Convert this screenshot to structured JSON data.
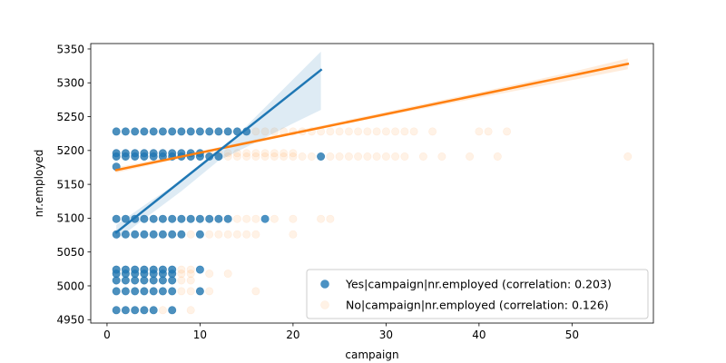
{
  "chart_data": {
    "type": "scatter",
    "xlabel": "campaign",
    "ylabel": "nr.employed",
    "xlim": [
      -1.75,
      58.75
    ],
    "ylim": [
      4945,
      5358
    ],
    "x_ticks": [
      0,
      10,
      20,
      30,
      40,
      50
    ],
    "y_ticks": [
      4950,
      5000,
      5050,
      5100,
      5150,
      5200,
      5250,
      5300,
      5350
    ],
    "legend_position": "lower-right",
    "grid": false,
    "colors": {
      "yes": "#1f77b4",
      "no": "#ff7f0e",
      "frame": "#000000"
    },
    "series": [
      {
        "key": "yes",
        "name": "Yes|campaign|nr.employed (correlation: 0.203)",
        "marker_alpha": 0.8,
        "points": [
          [
            1,
            5228
          ],
          [
            2,
            5228
          ],
          [
            3,
            5228
          ],
          [
            4,
            5228
          ],
          [
            5,
            5228
          ],
          [
            6,
            5228
          ],
          [
            7,
            5228
          ],
          [
            8,
            5228
          ],
          [
            9,
            5228
          ],
          [
            10,
            5228
          ],
          [
            11,
            5228
          ],
          [
            12,
            5228
          ],
          [
            13,
            5228
          ],
          [
            14,
            5228
          ],
          [
            15,
            5228
          ],
          [
            1,
            5196
          ],
          [
            2,
            5196
          ],
          [
            3,
            5196
          ],
          [
            4,
            5196
          ],
          [
            5,
            5196
          ],
          [
            6,
            5196
          ],
          [
            7,
            5196
          ],
          [
            8,
            5196
          ],
          [
            9,
            5196
          ],
          [
            10,
            5196
          ],
          [
            1,
            5191
          ],
          [
            2,
            5191
          ],
          [
            3,
            5191
          ],
          [
            4,
            5191
          ],
          [
            5,
            5191
          ],
          [
            6,
            5191
          ],
          [
            7,
            5191
          ],
          [
            8,
            5191
          ],
          [
            9,
            5191
          ],
          [
            10,
            5191
          ],
          [
            11,
            5191
          ],
          [
            12,
            5191
          ],
          [
            23,
            5191
          ],
          [
            1,
            5176
          ],
          [
            1,
            5099
          ],
          [
            2,
            5099
          ],
          [
            3,
            5099
          ],
          [
            4,
            5099
          ],
          [
            5,
            5099
          ],
          [
            6,
            5099
          ],
          [
            7,
            5099
          ],
          [
            8,
            5099
          ],
          [
            9,
            5099
          ],
          [
            10,
            5099
          ],
          [
            11,
            5099
          ],
          [
            12,
            5099
          ],
          [
            13,
            5099
          ],
          [
            17,
            5099
          ],
          [
            1,
            5076
          ],
          [
            2,
            5076
          ],
          [
            3,
            5076
          ],
          [
            4,
            5076
          ],
          [
            5,
            5076
          ],
          [
            6,
            5076
          ],
          [
            7,
            5076
          ],
          [
            8,
            5076
          ],
          [
            10,
            5076
          ],
          [
            1,
            5024
          ],
          [
            2,
            5024
          ],
          [
            3,
            5024
          ],
          [
            4,
            5024
          ],
          [
            5,
            5024
          ],
          [
            6,
            5024
          ],
          [
            7,
            5024
          ],
          [
            10,
            5024
          ],
          [
            1,
            5018
          ],
          [
            2,
            5018
          ],
          [
            3,
            5018
          ],
          [
            4,
            5018
          ],
          [
            5,
            5018
          ],
          [
            6,
            5018
          ],
          [
            7,
            5018
          ],
          [
            1,
            5008
          ],
          [
            2,
            5008
          ],
          [
            3,
            5008
          ],
          [
            4,
            5008
          ],
          [
            5,
            5008
          ],
          [
            6,
            5008
          ],
          [
            7,
            5008
          ],
          [
            1,
            4992
          ],
          [
            2,
            4992
          ],
          [
            3,
            4992
          ],
          [
            4,
            4992
          ],
          [
            5,
            4992
          ],
          [
            6,
            4992
          ],
          [
            7,
            4992
          ],
          [
            10,
            4992
          ],
          [
            1,
            4964
          ],
          [
            2,
            4964
          ],
          [
            3,
            4964
          ],
          [
            4,
            4964
          ],
          [
            5,
            4964
          ],
          [
            7,
            4964
          ]
        ],
        "fit": {
          "x": [
            1,
            23
          ],
          "y": [
            5079,
            5319
          ]
        },
        "ci": {
          "x": [
            1,
            4,
            8,
            12,
            16,
            20,
            23
          ],
          "upper": [
            5090,
            5119,
            5156,
            5195,
            5250,
            5305,
            5346
          ],
          "lower": [
            5068,
            5099,
            5140,
            5185,
            5212,
            5240,
            5260
          ]
        }
      },
      {
        "key": "no",
        "name": "No|campaign|nr.employed (correlation: 0.126)",
        "marker_alpha": 0.1,
        "points": [
          [
            1,
            5228
          ],
          [
            2,
            5228
          ],
          [
            3,
            5228
          ],
          [
            4,
            5228
          ],
          [
            5,
            5228
          ],
          [
            6,
            5228
          ],
          [
            7,
            5228
          ],
          [
            8,
            5228
          ],
          [
            9,
            5228
          ],
          [
            10,
            5228
          ],
          [
            11,
            5228
          ],
          [
            12,
            5228
          ],
          [
            13,
            5228
          ],
          [
            14,
            5228
          ],
          [
            15,
            5228
          ],
          [
            16,
            5228
          ],
          [
            17,
            5228
          ],
          [
            18,
            5228
          ],
          [
            19,
            5228
          ],
          [
            20,
            5228
          ],
          [
            21,
            5228
          ],
          [
            22,
            5228
          ],
          [
            23,
            5228
          ],
          [
            24,
            5228
          ],
          [
            25,
            5228
          ],
          [
            26,
            5228
          ],
          [
            27,
            5228
          ],
          [
            28,
            5228
          ],
          [
            29,
            5228
          ],
          [
            30,
            5228
          ],
          [
            31,
            5228
          ],
          [
            32,
            5228
          ],
          [
            33,
            5228
          ],
          [
            35,
            5228
          ],
          [
            40,
            5228
          ],
          [
            41,
            5228
          ],
          [
            43,
            5228
          ],
          [
            1,
            5196
          ],
          [
            2,
            5196
          ],
          [
            3,
            5196
          ],
          [
            4,
            5196
          ],
          [
            5,
            5196
          ],
          [
            6,
            5196
          ],
          [
            7,
            5196
          ],
          [
            8,
            5196
          ],
          [
            9,
            5196
          ],
          [
            10,
            5196
          ],
          [
            11,
            5196
          ],
          [
            12,
            5196
          ],
          [
            13,
            5196
          ],
          [
            14,
            5196
          ],
          [
            15,
            5196
          ],
          [
            16,
            5196
          ],
          [
            17,
            5196
          ],
          [
            18,
            5196
          ],
          [
            19,
            5196
          ],
          [
            20,
            5196
          ],
          [
            1,
            5191
          ],
          [
            2,
            5191
          ],
          [
            3,
            5191
          ],
          [
            4,
            5191
          ],
          [
            5,
            5191
          ],
          [
            6,
            5191
          ],
          [
            7,
            5191
          ],
          [
            8,
            5191
          ],
          [
            9,
            5191
          ],
          [
            10,
            5191
          ],
          [
            11,
            5191
          ],
          [
            12,
            5191
          ],
          [
            13,
            5191
          ],
          [
            14,
            5191
          ],
          [
            15,
            5191
          ],
          [
            16,
            5191
          ],
          [
            17,
            5191
          ],
          [
            18,
            5191
          ],
          [
            19,
            5191
          ],
          [
            20,
            5191
          ],
          [
            21,
            5191
          ],
          [
            22,
            5191
          ],
          [
            23,
            5191
          ],
          [
            24,
            5191
          ],
          [
            25,
            5191
          ],
          [
            26,
            5191
          ],
          [
            27,
            5191
          ],
          [
            28,
            5191
          ],
          [
            29,
            5191
          ],
          [
            30,
            5191
          ],
          [
            31,
            5191
          ],
          [
            32,
            5191
          ],
          [
            34,
            5191
          ],
          [
            36,
            5191
          ],
          [
            39,
            5191
          ],
          [
            42,
            5191
          ],
          [
            56,
            5191
          ],
          [
            1,
            5176
          ],
          [
            1,
            5099
          ],
          [
            2,
            5099
          ],
          [
            3,
            5099
          ],
          [
            4,
            5099
          ],
          [
            5,
            5099
          ],
          [
            6,
            5099
          ],
          [
            7,
            5099
          ],
          [
            8,
            5099
          ],
          [
            9,
            5099
          ],
          [
            10,
            5099
          ],
          [
            11,
            5099
          ],
          [
            12,
            5099
          ],
          [
            13,
            5099
          ],
          [
            14,
            5099
          ],
          [
            15,
            5099
          ],
          [
            16,
            5099
          ],
          [
            18,
            5099
          ],
          [
            20,
            5099
          ],
          [
            23,
            5099
          ],
          [
            24,
            5099
          ],
          [
            1,
            5076
          ],
          [
            2,
            5076
          ],
          [
            3,
            5076
          ],
          [
            4,
            5076
          ],
          [
            5,
            5076
          ],
          [
            6,
            5076
          ],
          [
            7,
            5076
          ],
          [
            8,
            5076
          ],
          [
            9,
            5076
          ],
          [
            10,
            5076
          ],
          [
            11,
            5076
          ],
          [
            12,
            5076
          ],
          [
            13,
            5076
          ],
          [
            14,
            5076
          ],
          [
            15,
            5076
          ],
          [
            16,
            5076
          ],
          [
            20,
            5076
          ],
          [
            1,
            5024
          ],
          [
            2,
            5024
          ],
          [
            3,
            5024
          ],
          [
            4,
            5024
          ],
          [
            5,
            5024
          ],
          [
            6,
            5024
          ],
          [
            7,
            5024
          ],
          [
            8,
            5024
          ],
          [
            9,
            5024
          ],
          [
            1,
            5018
          ],
          [
            2,
            5018
          ],
          [
            3,
            5018
          ],
          [
            4,
            5018
          ],
          [
            5,
            5018
          ],
          [
            6,
            5018
          ],
          [
            7,
            5018
          ],
          [
            8,
            5018
          ],
          [
            9,
            5018
          ],
          [
            11,
            5018
          ],
          [
            13,
            5018
          ],
          [
            1,
            5008
          ],
          [
            2,
            5008
          ],
          [
            3,
            5008
          ],
          [
            4,
            5008
          ],
          [
            5,
            5008
          ],
          [
            6,
            5008
          ],
          [
            7,
            5008
          ],
          [
            8,
            5008
          ],
          [
            9,
            5008
          ],
          [
            1,
            4992
          ],
          [
            2,
            4992
          ],
          [
            3,
            4992
          ],
          [
            4,
            4992
          ],
          [
            5,
            4992
          ],
          [
            6,
            4992
          ],
          [
            7,
            4992
          ],
          [
            8,
            4992
          ],
          [
            9,
            4992
          ],
          [
            10,
            4992
          ],
          [
            11,
            4992
          ],
          [
            16,
            4992
          ],
          [
            1,
            4964
          ],
          [
            2,
            4964
          ],
          [
            3,
            4964
          ],
          [
            4,
            4964
          ],
          [
            5,
            4964
          ],
          [
            6,
            4964
          ],
          [
            7,
            4964
          ],
          [
            9,
            4964
          ]
        ],
        "fit": {
          "x": [
            1,
            56
          ],
          "y": [
            5171,
            5328
          ]
        },
        "ci": {
          "x": [
            1,
            10,
            20,
            30,
            40,
            50,
            56
          ],
          "upper": [
            5175,
            5199,
            5228,
            5257,
            5286,
            5316,
            5336
          ],
          "lower": [
            5167,
            5195,
            5224,
            5251,
            5278,
            5304,
            5320
          ]
        }
      }
    ]
  }
}
